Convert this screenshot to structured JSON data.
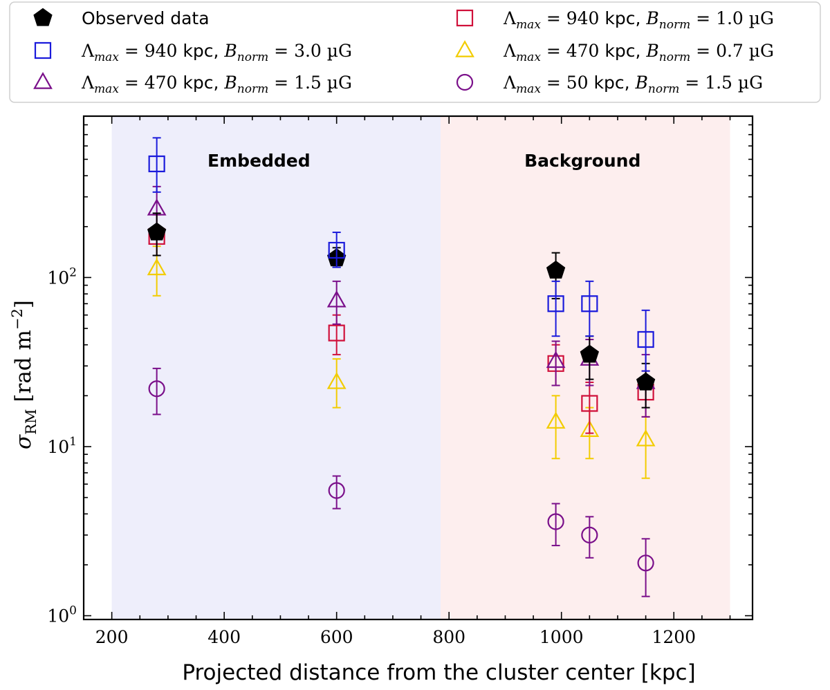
{
  "chart_data": {
    "type": "scatter",
    "xlabel": "Projected distance from the cluster center [kpc]",
    "ylabel_symbol": "σ",
    "ylabel_subscript": "RM",
    "ylabel_units": "[rad m",
    "ylabel_exponent": "−2",
    "ylabel_close": "]",
    "yscale": "log",
    "xlim": [
      150,
      1340
    ],
    "ylim": [
      0.95,
      900
    ],
    "xticks": [
      200,
      400,
      600,
      800,
      1000,
      1200
    ],
    "yticks": [
      {
        "value": 1,
        "base": "10",
        "exp": "0"
      },
      {
        "value": 10,
        "base": "10",
        "exp": "1"
      },
      {
        "value": 100,
        "base": "10",
        "exp": "2"
      }
    ],
    "regions": [
      {
        "label": "Embedded",
        "x0": 200,
        "x1": 785,
        "color": "#eeeefb"
      },
      {
        "label": "Background",
        "x0": 785,
        "x1": 1300,
        "color": "#fdeeee"
      }
    ],
    "series": [
      {
        "name": "Observed data",
        "marker": "pentagon",
        "filled": true,
        "color": "#000000",
        "points": [
          {
            "x": 280,
            "y": 185,
            "err_lo": 50,
            "err_hi": 55
          },
          {
            "x": 600,
            "y": 130,
            "err_lo": 15,
            "err_hi": 20
          },
          {
            "x": 990,
            "y": 110,
            "err_lo": 35,
            "err_hi": 30
          },
          {
            "x": 1050,
            "y": 35,
            "err_lo": 10,
            "err_hi": 10
          },
          {
            "x": 1150,
            "y": 24,
            "err_lo": 7,
            "err_hi": 7
          }
        ]
      },
      {
        "name": "Λmax = 940 kpc, Bnorm = 3.0 µG",
        "marker": "square",
        "filled": false,
        "color": "#1a1adb",
        "points": [
          {
            "x": 280,
            "y": 470,
            "err_lo": 150,
            "err_hi": 200
          },
          {
            "x": 600,
            "y": 145,
            "err_lo": 30,
            "err_hi": 40
          },
          {
            "x": 990,
            "y": 70,
            "err_lo": 25,
            "err_hi": 25
          },
          {
            "x": 1050,
            "y": 70,
            "err_lo": 25,
            "err_hi": 25
          },
          {
            "x": 1150,
            "y": 43,
            "err_lo": 15,
            "err_hi": 21
          }
        ]
      },
      {
        "name": "Λmax = 470 kpc, Bnorm = 1.5 µG",
        "marker": "triangle",
        "filled": false,
        "color": "#7a0f8a",
        "points": [
          {
            "x": 280,
            "y": 255,
            "err_lo": 80,
            "err_hi": 90
          },
          {
            "x": 600,
            "y": 73,
            "err_lo": 20,
            "err_hi": 22
          },
          {
            "x": 990,
            "y": 32,
            "err_lo": 9,
            "err_hi": 10
          },
          {
            "x": 1050,
            "y": 33,
            "err_lo": 10,
            "err_hi": 10
          },
          {
            "x": 1150,
            "y": 24,
            "err_lo": 9,
            "err_hi": 11
          }
        ]
      },
      {
        "name": "Λmax = 940 kpc, Bnorm = 1.0 µG",
        "marker": "square",
        "filled": false,
        "color": "#d0103a",
        "points": [
          {
            "x": 280,
            "y": 175,
            "err_lo": 40,
            "err_hi": 60
          },
          {
            "x": 600,
            "y": 47,
            "err_lo": 12,
            "err_hi": 13
          },
          {
            "x": 990,
            "y": 31,
            "err_lo": 8,
            "err_hi": 9
          },
          {
            "x": 1050,
            "y": 18,
            "err_lo": 6,
            "err_hi": 6
          },
          {
            "x": 1150,
            "y": 21,
            "err_lo": 6,
            "err_hi": 7
          }
        ]
      },
      {
        "name": "Λmax = 470 kpc, Bnorm = 0.7 µG",
        "marker": "triangle",
        "filled": false,
        "color": "#f2cc00",
        "points": [
          {
            "x": 280,
            "y": 113,
            "err_lo": 35,
            "err_hi": 40
          },
          {
            "x": 600,
            "y": 24,
            "err_lo": 7,
            "err_hi": 9
          },
          {
            "x": 990,
            "y": 14,
            "err_lo": 5.5,
            "err_hi": 6
          },
          {
            "x": 1050,
            "y": 12.5,
            "err_lo": 4,
            "err_hi": 4.5
          },
          {
            "x": 1150,
            "y": 11,
            "err_lo": 4.5,
            "err_hi": 4
          }
        ]
      },
      {
        "name": "Λmax = 50 kpc, Bnorm = 1.5 µG",
        "marker": "circle",
        "filled": false,
        "color": "#7a0f8a",
        "points": [
          {
            "x": 280,
            "y": 22,
            "err_lo": 6.5,
            "err_hi": 7
          },
          {
            "x": 600,
            "y": 5.5,
            "err_lo": 1.2,
            "err_hi": 1.2
          },
          {
            "x": 990,
            "y": 3.6,
            "err_lo": 1,
            "err_hi": 1
          },
          {
            "x": 1050,
            "y": 3.0,
            "err_lo": 0.8,
            "err_hi": 0.85
          },
          {
            "x": 1150,
            "y": 2.05,
            "err_lo": 0.75,
            "err_hi": 0.8
          }
        ]
      }
    ],
    "legend": {
      "placement": "top",
      "columns": [
        [
          {
            "marker": "pentagon",
            "filled": true,
            "color": "#000000",
            "text": "Observed data"
          },
          {
            "marker": "square",
            "filled": false,
            "color": "#1a1adb",
            "lambda_val": "940",
            "kpc": "kpc,",
            "b_val": "3.0",
            "unit": "µG"
          },
          {
            "marker": "triangle",
            "filled": false,
            "color": "#7a0f8a",
            "lambda_val": "470",
            "kpc": "kpc,",
            "b_val": "1.5",
            "unit": "µG"
          }
        ],
        [
          {
            "marker": "square",
            "filled": false,
            "color": "#d0103a",
            "lambda_val": "940",
            "kpc": "kpc,",
            "b_val": "1.0",
            "unit": "µG"
          },
          {
            "marker": "triangle",
            "filled": false,
            "color": "#f2cc00",
            "lambda_val": "470",
            "kpc": "kpc,",
            "b_val": "0.7",
            "unit": "µG"
          },
          {
            "marker": "circle",
            "filled": false,
            "color": "#7a0f8a",
            "lambda_val": "50",
            "kpc": "kpc,",
            "b_val": "1.5",
            "unit": "µG"
          }
        ]
      ],
      "lambda_symbol": "Λ",
      "lambda_sub": "max",
      "b_symbol": "B",
      "b_sub": "norm",
      "equals": "="
    }
  }
}
